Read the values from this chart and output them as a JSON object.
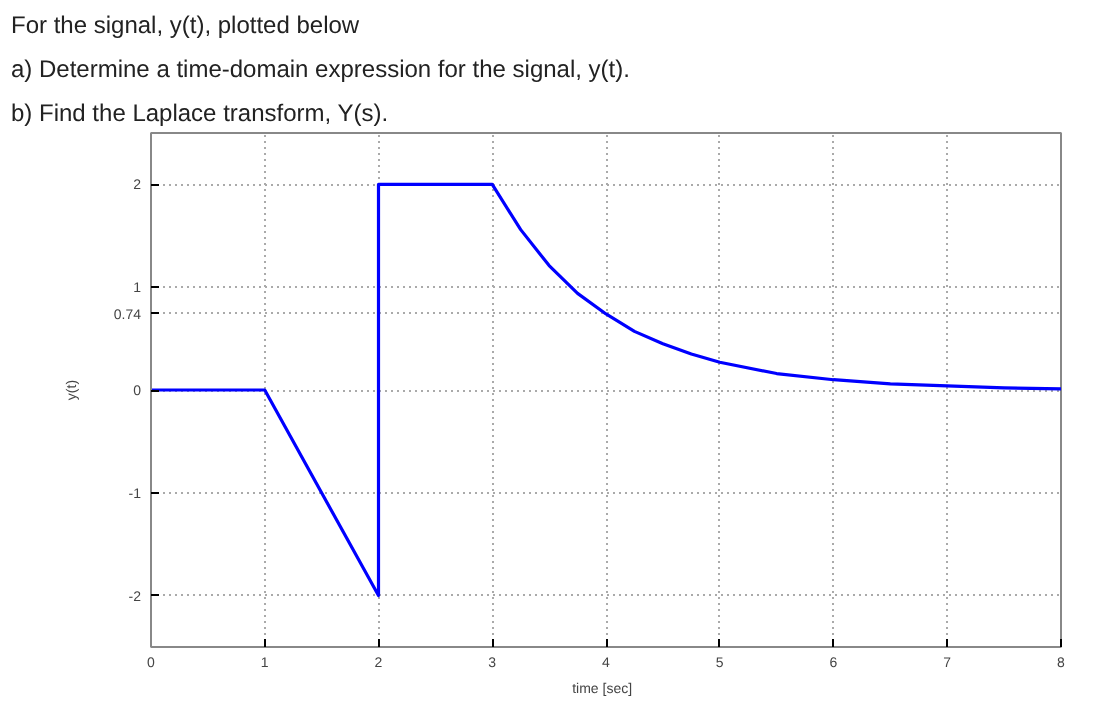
{
  "chart_data": {
    "type": "line",
    "title": "For the signal, y(t), plotted below",
    "annotations": [
      "a)  Determine a time-domain expression for the signal, y(t).",
      "b)  Find the Laplace transform, Y(s)."
    ],
    "xlabel": "time   [sec]",
    "ylabel": "y(t)",
    "x": [
      0,
      1,
      2,
      2,
      3,
      3.25,
      3.5,
      3.75,
      4,
      4.25,
      4.5,
      4.75,
      5,
      5.5,
      6,
      6.5,
      7,
      7.5,
      8
    ],
    "values": [
      0,
      0,
      -2,
      2,
      2,
      1.56,
      1.21,
      0.94,
      0.74,
      0.57,
      0.45,
      0.35,
      0.27,
      0.16,
      0.1,
      0.06,
      0.04,
      0.02,
      0.01
    ],
    "color": "#0000ff",
    "xlim": [
      0,
      8
    ],
    "ylim": [
      -2.5,
      2.5
    ],
    "xticks": [
      0,
      1,
      2,
      3,
      4,
      5,
      6,
      7,
      8
    ],
    "yticks": [
      -2,
      -1,
      0,
      0.74,
      1,
      2
    ],
    "grid": true
  }
}
